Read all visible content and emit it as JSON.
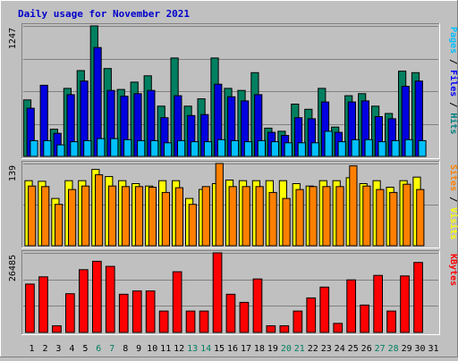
{
  "chart_data": [
    {
      "type": "bar",
      "title": "Daily usage for November 2021",
      "days": [
        "1",
        "2",
        "3",
        "4",
        "5",
        "6",
        "7",
        "8",
        "9",
        "10",
        "11",
        "12",
        "13",
        "14",
        "15",
        "16",
        "17",
        "18",
        "19",
        "20",
        "21",
        "22",
        "23",
        "24",
        "25",
        "26",
        "27",
        "28",
        "29",
        "30",
        "31"
      ],
      "weekend_days": [
        "6",
        "7",
        "13",
        "14",
        "20",
        "21",
        "27",
        "28"
      ],
      "ymax": 1247,
      "ymax_label": "1247",
      "right_label_parts": [
        "Pages",
        " / ",
        "Files",
        " / ",
        "Hits"
      ],
      "series": [
        {
          "name": "Hits",
          "values": [
            540,
            0,
            260,
            650,
            820,
            1247,
            840,
            640,
            710,
            770,
            480,
            940,
            480,
            550,
            940,
            650,
            630,
            800,
            270,
            240,
            500,
            450,
            650,
            280,
            580,
            600,
            480,
            410,
            815,
            800,
            0
          ]
        },
        {
          "name": "Files",
          "values": [
            460,
            680,
            220,
            590,
            720,
            1040,
            630,
            575,
            600,
            630,
            370,
            580,
            390,
            400,
            690,
            570,
            530,
            590,
            230,
            200,
            370,
            360,
            520,
            230,
            520,
            530,
            380,
            360,
            670,
            720,
            0
          ]
        },
        {
          "name": "Pages",
          "values": [
            150,
            150,
            110,
            140,
            150,
            170,
            170,
            160,
            150,
            150,
            130,
            150,
            140,
            140,
            160,
            150,
            140,
            150,
            140,
            130,
            130,
            130,
            240,
            140,
            160,
            160,
            140,
            150,
            160,
            150,
            0
          ]
        }
      ]
    },
    {
      "type": "bar",
      "ymax": 139,
      "ymax_label": "139",
      "right_label_parts": [
        "Sites",
        " / ",
        "Visits"
      ],
      "series": [
        {
          "name": "Visits",
          "values": [
            110,
            109,
            80,
            110,
            110,
            129,
            117,
            110,
            105,
            101,
            110,
            110,
            80,
            95,
            105,
            111,
            110,
            110,
            110,
            110,
            105,
            101,
            110,
            110,
            115,
            105,
            110,
            99,
            110,
            116,
            0
          ]
        },
        {
          "name": "Sites",
          "values": [
            101,
            100,
            70,
            95,
            101,
            120,
            101,
            100,
            100,
            99,
            90,
            98,
            70,
            100,
            139,
            100,
            100,
            100,
            90,
            80,
            95,
            100,
            100,
            100,
            135,
            101,
            95,
            90,
            104,
            95,
            0
          ]
        }
      ]
    },
    {
      "type": "bar",
      "ymax": 26485,
      "ymax_label": "26485",
      "right_label_parts": [
        "KBytes"
      ],
      "series": [
        {
          "name": "KBytes",
          "values": [
            16100,
            18500,
            2200,
            12900,
            20900,
            23700,
            22000,
            12700,
            13800,
            13800,
            7100,
            20200,
            7100,
            7100,
            26485,
            12700,
            10000,
            17800,
            2200,
            2200,
            7100,
            11500,
            15100,
            3000,
            17500,
            9100,
            19000,
            7100,
            18800,
            23300,
            0
          ]
        }
      ]
    }
  ]
}
